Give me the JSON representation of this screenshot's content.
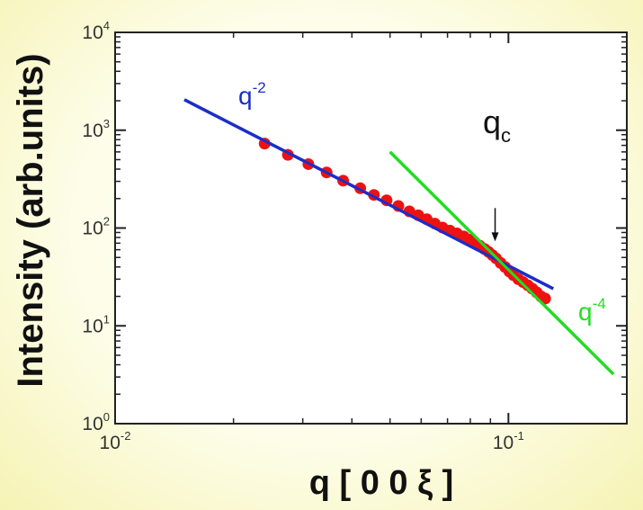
{
  "chart_data": {
    "type": "scatter",
    "title": "",
    "xlabel": "q [ 0 0 ξ ]",
    "ylabel": "Intensity (arb.units)",
    "xscale": "log",
    "yscale": "log",
    "xlim": [
      0.01,
      0.2
    ],
    "ylim": [
      1,
      10000
    ],
    "grid": false,
    "x_ticks": [
      {
        "base": "10",
        "exp": "-2"
      },
      {
        "base": "10",
        "exp": "-1"
      }
    ],
    "y_ticks": [
      {
        "base": "10",
        "exp": "0"
      },
      {
        "base": "10",
        "exp": "1"
      },
      {
        "base": "10",
        "exp": "2"
      },
      {
        "base": "10",
        "exp": "3"
      },
      {
        "base": "10",
        "exp": "4"
      }
    ],
    "series": [
      {
        "kind": "points",
        "color": "#ee1111",
        "x": [
          0.024,
          0.0275,
          0.031,
          0.0345,
          0.038,
          0.042,
          0.0455,
          0.049,
          0.0525,
          0.056,
          0.059,
          0.062,
          0.065,
          0.068,
          0.071,
          0.074,
          0.077,
          0.0795,
          0.082,
          0.0845,
          0.087,
          0.089,
          0.091,
          0.093,
          0.0955,
          0.098,
          0.1005,
          0.103,
          0.106,
          0.109,
          0.112,
          0.115,
          0.118,
          0.121,
          0.124
        ],
        "y": [
          730,
          560,
          450,
          370,
          305,
          255,
          218,
          192,
          168,
          148,
          135,
          123,
          111,
          101,
          94,
          88,
          82,
          76,
          71,
          66,
          61,
          57,
          53,
          49,
          44,
          40,
          36,
          33,
          30,
          28,
          26,
          24,
          22,
          20,
          19
        ]
      },
      {
        "kind": "line",
        "color": "#1a2ec9",
        "x": [
          0.015,
          0.13
        ],
        "y": [
          2050,
          24
        ]
      },
      {
        "kind": "line",
        "color": "#22dd22",
        "x": [
          0.05,
          0.185
        ],
        "y": [
          600,
          3.2
        ]
      }
    ],
    "annotations": [
      {
        "id": "q-2",
        "base": "q",
        "sup": "-2",
        "color": "#1a2ec9"
      },
      {
        "id": "q-4",
        "base": "q",
        "sup": "-4",
        "color": "#22dd22"
      },
      {
        "id": "qc",
        "base": "q",
        "sub": "c",
        "color": "#111111",
        "arrow_x": 0.0925,
        "arrow_y_from": 160,
        "arrow_y_to": 73
      }
    ]
  }
}
